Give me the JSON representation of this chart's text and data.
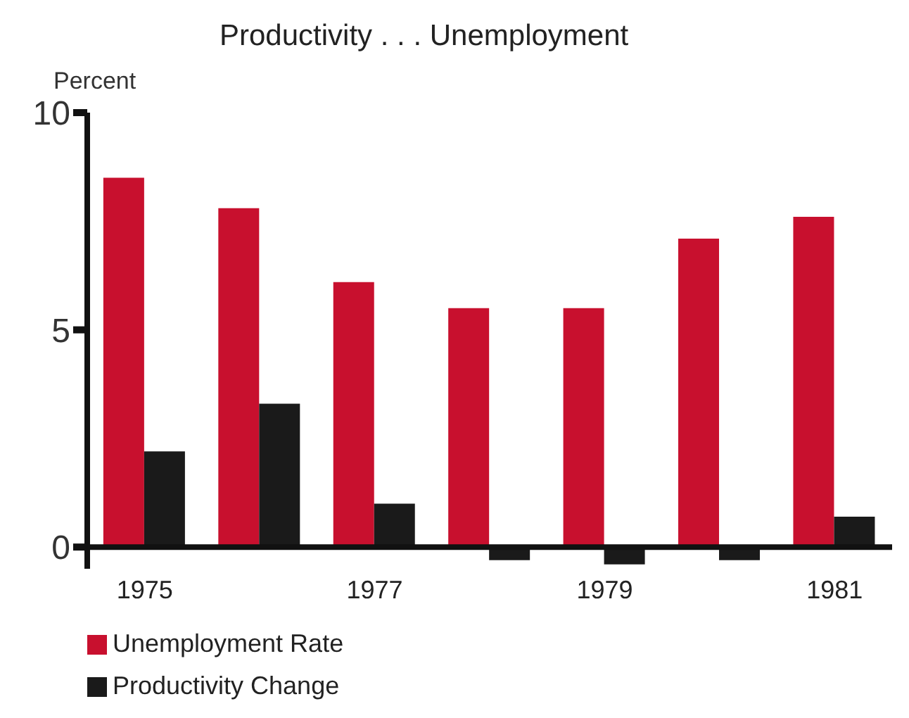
{
  "chart_data": {
    "type": "bar",
    "title": "Productivity . . . Unemployment",
    "ylabel": "Percent",
    "categories": [
      "1975",
      null,
      "1977",
      null,
      "1979",
      null,
      "1981"
    ],
    "series": [
      {
        "name": "Unemployment Rate",
        "color": "#c8102e",
        "values": [
          8.5,
          7.8,
          6.1,
          5.5,
          5.5,
          7.1,
          7.6
        ]
      },
      {
        "name": "Productivity Change",
        "color": "#1a1a1a",
        "values": [
          2.2,
          3.3,
          1.0,
          -0.3,
          -0.4,
          -0.3,
          0.7
        ]
      }
    ],
    "ylim": [
      -0.5,
      10
    ],
    "yticks": [
      0,
      5,
      10
    ],
    "grid": false,
    "legend": "bottom left"
  }
}
